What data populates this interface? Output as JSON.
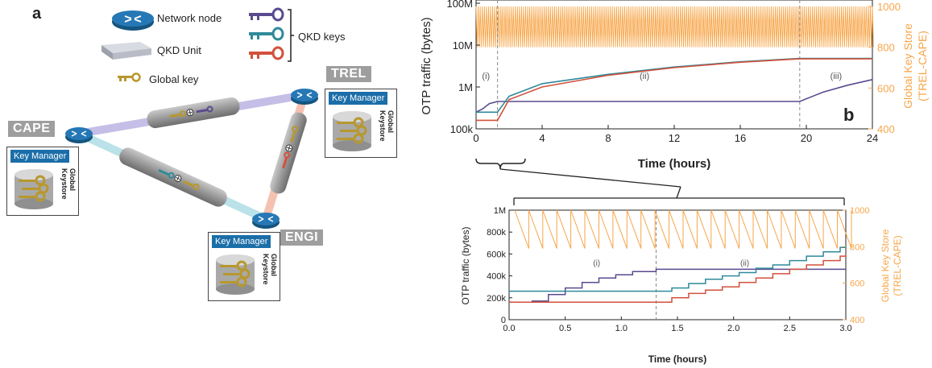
{
  "panel_a": {
    "letter": "a",
    "legend": {
      "network_node": "Network node",
      "qkd_unit": "QKD Unit",
      "global_key": "Global key",
      "qkd_keys": "QKD keys"
    },
    "sites": {
      "cape": "CAPE",
      "trel": "TREL",
      "engi": "ENGI"
    },
    "key_manager": "Key Manager",
    "keystore_line1": "Global",
    "keystore_line2": "Keystore",
    "colors": {
      "key_purple": "#5b4a8f",
      "key_teal": "#2f8a9a",
      "key_red": "#d2513c",
      "global_key": "#b8982e",
      "node_blue": "#1b6ea8"
    }
  },
  "panel_b": {
    "letter": "b",
    "top_chart": {
      "xlabel": "Time (hours)",
      "ylabel": "OTP traffic (bytes)",
      "y2label_line1": "Global Key Store",
      "y2label_line2": "(TREL-CAPE)",
      "xticks": [
        "0",
        "4",
        "8",
        "12",
        "16",
        "20",
        "24"
      ],
      "yticks": [
        "100k",
        "1M",
        "10M",
        "100M"
      ],
      "y2ticks": [
        "400",
        "600",
        "800",
        "1000"
      ],
      "regions": [
        "(i)",
        "(ii)",
        "(iii)"
      ]
    },
    "bottom_chart": {
      "xlabel": "Time (hours)",
      "ylabel": "OTP traffic (bytes)",
      "y2label_line1": "Global Key Store",
      "y2label_line2": "(TREL-CAPE)",
      "xticks": [
        "0.0",
        "0.5",
        "1.0",
        "1.5",
        "2.0",
        "2.5",
        "3.0"
      ],
      "yticks": [
        "0",
        "200k",
        "400k",
        "600k",
        "800k",
        "1M"
      ],
      "y2ticks": [
        "400",
        "600",
        "800",
        "1000"
      ],
      "regions": [
        "(i)",
        "(ii)"
      ]
    }
  },
  "chart_data": [
    {
      "type": "line",
      "xlabel": "Time (hours)",
      "ylabel": "OTP traffic (bytes)",
      "y2label": "Global Key Store (TREL-CAPE)",
      "xlim": [
        0,
        24
      ],
      "ylim": [
        100000,
        100000000
      ],
      "yscale": "log",
      "y2lim": [
        400,
        1000
      ],
      "annotations": [
        "(i)",
        "(ii)",
        "(iii)",
        "b"
      ],
      "vlines": [
        1.3,
        19.6
      ],
      "series": [
        {
          "color": "#5b4a8f",
          "x": [
            0,
            0.4,
            0.8,
            1.3,
            19.6,
            21,
            22.5,
            24
          ],
          "y": [
            250000,
            300000,
            400000,
            450000,
            450000,
            750000,
            1100000,
            1500000
          ]
        },
        {
          "color": "#2f8a9a",
          "x": [
            0,
            1.3,
            2,
            4,
            8,
            12,
            16,
            19.6,
            24
          ],
          "y": [
            250000,
            250000,
            600000,
            1200000,
            2000000,
            3000000,
            4000000,
            4800000,
            4800000
          ]
        },
        {
          "color": "#d2513c",
          "x": [
            0,
            1.3,
            2,
            4,
            8,
            12,
            16,
            19.6,
            24
          ],
          "y": [
            160000,
            160000,
            500000,
            1000000,
            1900000,
            2900000,
            3900000,
            4700000,
            4700000
          ]
        },
        {
          "color": "#f7a64a",
          "name": "",
          "axis": "y2",
          "oscillation": {
            "min": 800,
            "max": 1000,
            "period_hours": 0.125
          }
        }
      ]
    },
    {
      "type": "line",
      "xlabel": "Time (hours)",
      "ylabel": "OTP traffic (bytes)",
      "y2label": "Global Key Store (TREL-CAPE)",
      "xlim": [
        0,
        3
      ],
      "ylim": [
        0,
        1000000
      ],
      "y2lim": [
        400,
        1000
      ],
      "annotations": [
        "(i)",
        "(ii)"
      ],
      "vlines": [
        1.31
      ],
      "series": [
        {
          "color": "#5b4a8f",
          "step": true,
          "x": [
            0.2,
            0.35,
            0.5,
            0.65,
            0.8,
            0.95,
            1.1,
            1.31,
            3.0
          ],
          "y": [
            170000,
            230000,
            290000,
            340000,
            380000,
            410000,
            440000,
            460000,
            460000
          ]
        },
        {
          "color": "#2f8a9a",
          "step": true,
          "x": [
            0,
            1.31,
            1.45,
            1.6,
            1.75,
            1.9,
            2.05,
            2.2,
            2.35,
            2.5,
            2.65,
            2.8,
            2.95,
            3.0
          ],
          "y": [
            260000,
            260000,
            290000,
            330000,
            370000,
            400000,
            430000,
            470000,
            500000,
            540000,
            580000,
            620000,
            660000,
            670000
          ]
        },
        {
          "color": "#d2513c",
          "step": true,
          "x": [
            0,
            1.31,
            1.45,
            1.6,
            1.75,
            1.9,
            2.05,
            2.2,
            2.35,
            2.5,
            2.65,
            2.8,
            2.95,
            3.0
          ],
          "y": [
            160000,
            160000,
            200000,
            240000,
            270000,
            300000,
            340000,
            380000,
            420000,
            460000,
            500000,
            540000,
            580000,
            590000
          ]
        },
        {
          "color": "#f7a64a",
          "name": "",
          "axis": "y2",
          "sawtooth": {
            "min": 790,
            "max": 1000,
            "period_hours": 0.125
          }
        }
      ]
    }
  ]
}
